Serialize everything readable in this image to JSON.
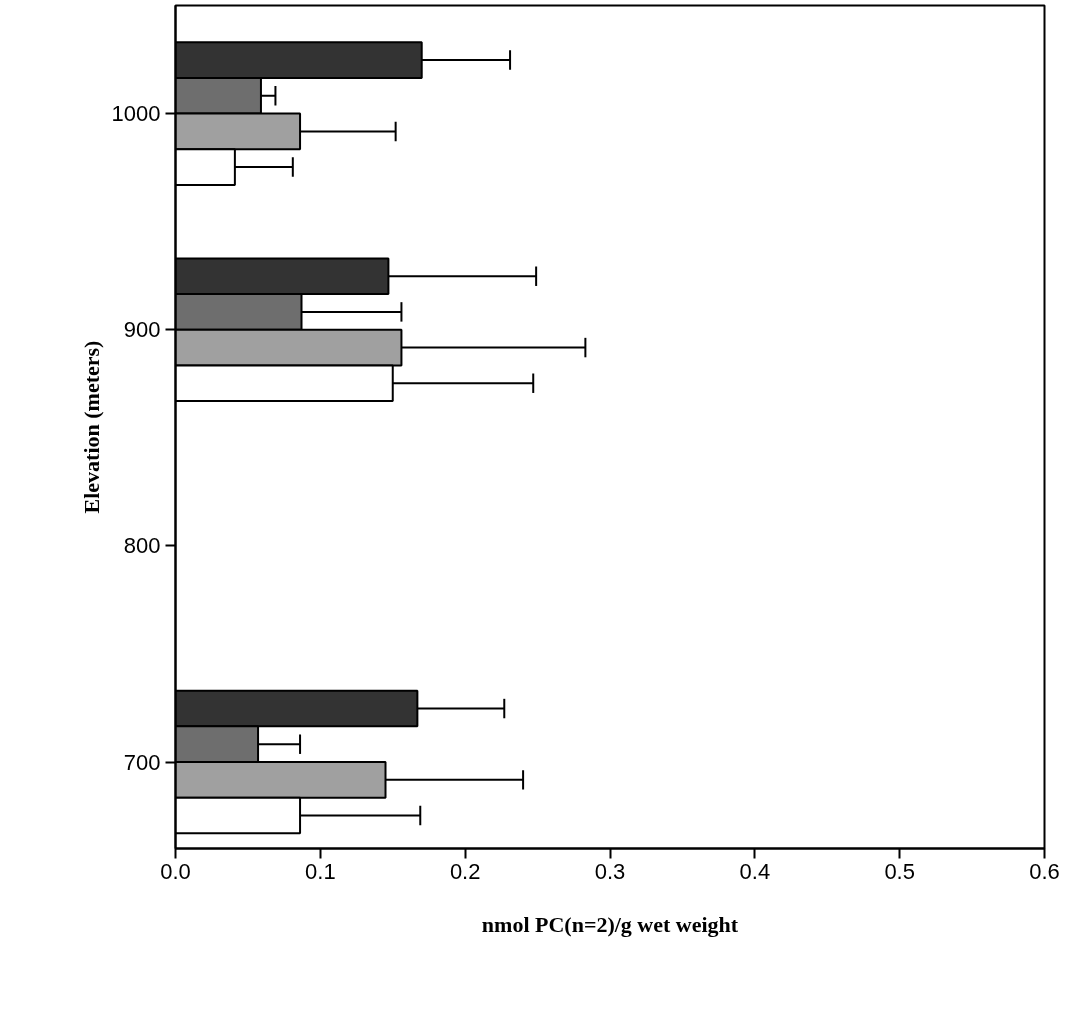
{
  "chart_data": {
    "type": "bar",
    "orientation": "horizontal",
    "xlabel": "nmol PC(n=2)/g wet weight",
    "ylabel": "Elevation (meters)",
    "x": [
      1000,
      900,
      700
    ],
    "series": [
      {
        "color": "#333333",
        "values": [
          0.17,
          0.147,
          0.167
        ],
        "errors": [
          [
            0.17,
            0.231
          ],
          [
            0.147,
            0.249
          ],
          [
            0.167,
            0.227
          ]
        ]
      },
      {
        "color": "#6e6e6e",
        "values": [
          0.059,
          0.087,
          0.057
        ],
        "errors": [
          [
            0.059,
            0.069
          ],
          [
            0.087,
            0.156
          ],
          [
            0.057,
            0.086
          ]
        ]
      },
      {
        "color": "#a0a0a0",
        "values": [
          0.086,
          0.156,
          0.145
        ],
        "errors": [
          [
            0.086,
            0.152
          ],
          [
            0.156,
            0.283
          ],
          [
            0.145,
            0.24
          ]
        ]
      },
      {
        "color": "#ffffff",
        "values": [
          0.041,
          0.15,
          0.086
        ],
        "errors": [
          [
            0.041,
            0.081
          ],
          [
            0.15,
            0.247
          ],
          [
            0.086,
            0.169
          ]
        ]
      }
    ],
    "xlim": [
      0,
      0.6
    ],
    "xticks": [
      {
        "value": 0,
        "label": "0.0"
      },
      0.1,
      0.2,
      0.3,
      0.4,
      0.5,
      0.6
    ],
    "ylim": [
      660,
      1050
    ],
    "yticks": [
      700,
      800,
      900,
      1000
    ],
    "grid": false
  }
}
